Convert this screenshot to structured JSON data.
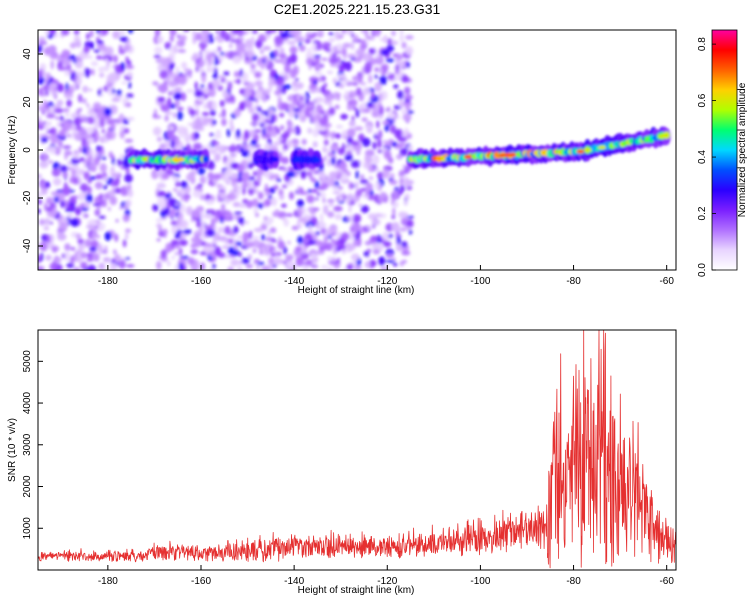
{
  "figure_title": "C2E1.2025.221.15.23.G31",
  "colors": {
    "snr_line": "#e53030",
    "axis": "#000000",
    "colormap": [
      "#ffffff",
      "#e8d4ff",
      "#b070ff",
      "#7a1fff",
      "#2a00ff",
      "#0050ff",
      "#00d8ff",
      "#00ff70",
      "#b0ff00",
      "#ffd000",
      "#ff6000",
      "#ff0000",
      "#ff00a0"
    ]
  },
  "chart_data": [
    {
      "type": "heatmap",
      "title": "C2E1.2025.221.15.23.G31",
      "xlabel": "Height of straight line (km)",
      "ylabel": "Frequency (Hz)",
      "xlim": [
        -195,
        -58
      ],
      "ylim": [
        -50,
        50
      ],
      "xticks": [
        -180,
        -160,
        -140,
        -120,
        -100,
        -80,
        -60
      ],
      "yticks": [
        -40,
        -20,
        0,
        20,
        40
      ],
      "colorbar": {
        "label": "Normalized spectral amplitude",
        "range": [
          0.0,
          0.85
        ],
        "ticks": [
          "0.0",
          "0.2",
          "0.4",
          "0.6",
          "0.8"
        ]
      },
      "noise_regions": [
        {
          "x": [
            -195,
            -175
          ],
          "y": [
            -50,
            50
          ],
          "density": "high"
        },
        {
          "x": [
            -170,
            -115
          ],
          "y": [
            -50,
            50
          ],
          "density": "high"
        }
      ],
      "signal_segments": [
        {
          "x": [
            -175,
            -159
          ],
          "freq": -4,
          "peak_amplitude": 0.75
        },
        {
          "x": [
            -148,
            -144
          ],
          "freq": -4,
          "peak_amplitude": 0.3
        },
        {
          "x": [
            -140,
            -135
          ],
          "freq": -4,
          "peak_amplitude": 0.35
        },
        {
          "x": [
            -115,
            -77
          ],
          "freq_start": -4,
          "freq_end": -0.5,
          "peak_amplitude": 0.85
        },
        {
          "x": [
            -77,
            -60
          ],
          "freq_start": 0,
          "freq_end": 6,
          "peak_amplitude": 0.7
        }
      ]
    },
    {
      "type": "line",
      "xlabel": "Height of straight line (km)",
      "ylabel": "SNR (10 * v/v)",
      "xlim": [
        -195,
        -58
      ],
      "ylim": [
        0,
        5750
      ],
      "xticks": [
        -180,
        -160,
        -140,
        -120,
        -100,
        -80,
        -60
      ],
      "yticks": [
        1000,
        2000,
        3000,
        4000,
        5000
      ],
      "envelope": {
        "x": [
          -195,
          -172,
          -171,
          -160,
          -145,
          -140,
          -120,
          -112,
          -100,
          -92,
          -86,
          -85,
          -82,
          -78,
          -75,
          -70,
          -66,
          -63,
          -60,
          -58
        ],
        "baseline": [
          300,
          300,
          400,
          350,
          400,
          500,
          480,
          550,
          650,
          800,
          900,
          1400,
          1700,
          1900,
          2300,
          1600,
          1200,
          800,
          550,
          450
        ],
        "amplitude": [
          150,
          150,
          250,
          200,
          350,
          300,
          300,
          350,
          450,
          500,
          600,
          2200,
          2300,
          2700,
          3300,
          2100,
          1600,
          1100,
          700,
          500
        ]
      },
      "max_value": 5750,
      "max_at_x": -74.5
    }
  ]
}
